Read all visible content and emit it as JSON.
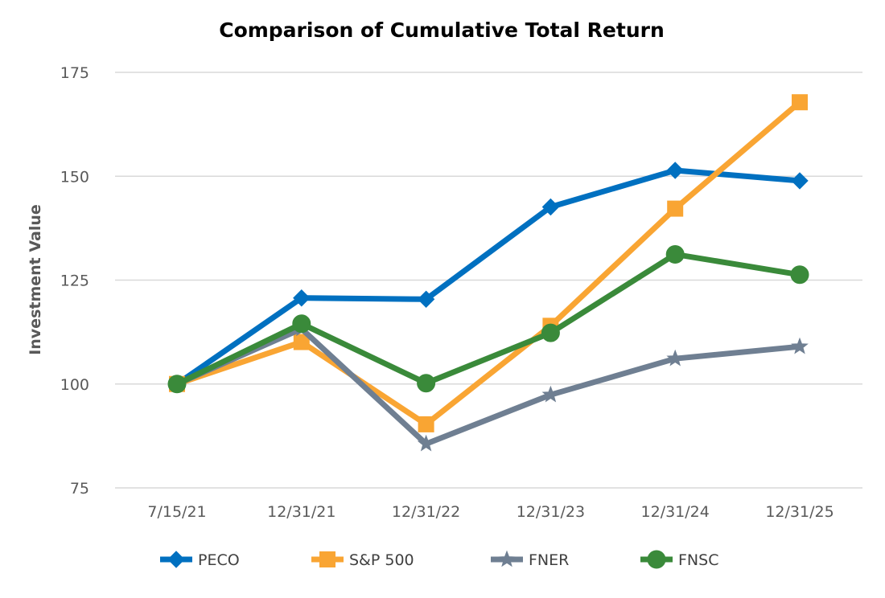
{
  "chart_data": {
    "type": "line",
    "title": "Comparison of Cumulative Total Return",
    "xlabel": "",
    "ylabel": "Investment Value",
    "categories": [
      "7/15/21",
      "12/31/21",
      "12/31/22",
      "12/31/23",
      "12/31/24",
      "12/31/25"
    ],
    "ylim": [
      75,
      175
    ],
    "yticks": [
      "75",
      "100",
      "125",
      "150",
      "175"
    ],
    "grid": true,
    "legend_position": "bottom",
    "series": [
      {
        "name": "PECO",
        "color": "#0070c0",
        "marker": "diamond",
        "values": [
          100,
          120.7,
          120.4,
          142.6,
          151.4,
          148.9
        ]
      },
      {
        "name": "S&P 500",
        "color": "#f9a533",
        "marker": "square",
        "values": [
          100,
          110.1,
          90.3,
          114.0,
          142.2,
          167.8
        ]
      },
      {
        "name": "FNER",
        "color": "#6f7f92",
        "marker": "star",
        "values": [
          100,
          113.3,
          85.6,
          97.4,
          106.1,
          109.0
        ]
      },
      {
        "name": "FNSC",
        "color": "#3a8a3a",
        "marker": "circle",
        "values": [
          100,
          114.5,
          100.2,
          112.3,
          131.2,
          126.3
        ]
      }
    ]
  }
}
